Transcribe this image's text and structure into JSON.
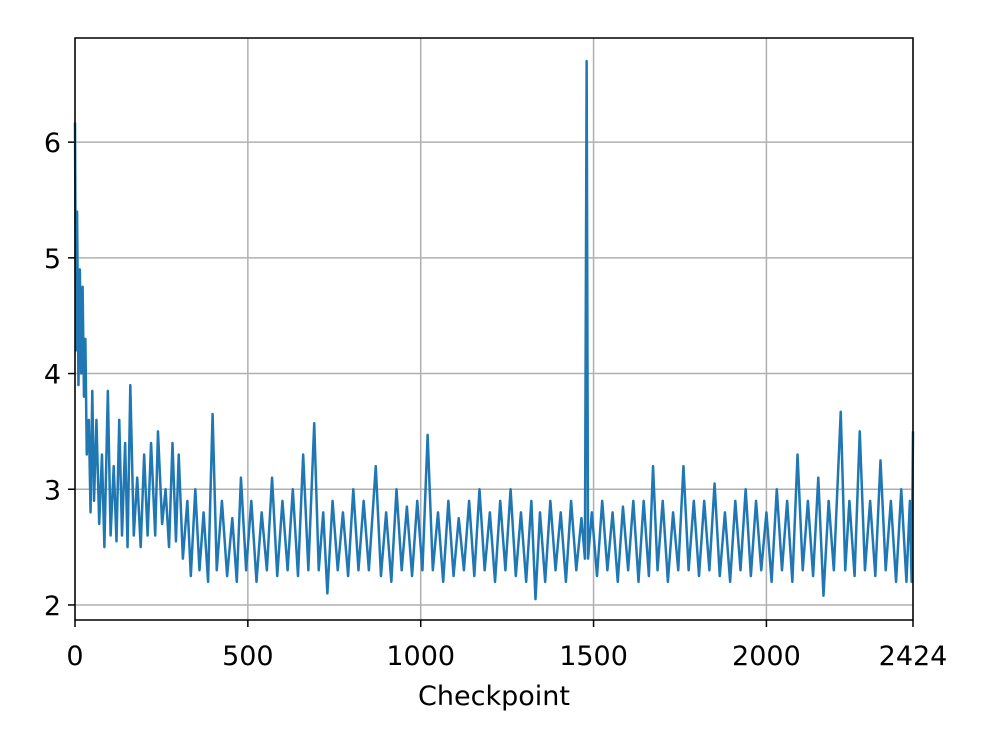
{
  "chart_data": {
    "type": "line",
    "x_label": "Checkpoint",
    "xlim": [
      0,
      2424
    ],
    "xticks": [
      0,
      500,
      1000,
      1500,
      2000,
      2424
    ],
    "ylim": [
      1.87,
      6.9
    ],
    "yticks": [
      2,
      3,
      4,
      5,
      6
    ],
    "grid": true,
    "series": [
      {
        "color": "#1f77b4",
        "x": [
          0,
          3,
          6,
          10,
          14,
          18,
          22,
          26,
          30,
          34,
          40,
          45,
          50,
          55,
          62,
          70,
          78,
          85,
          95,
          103,
          112,
          120,
          128,
          136,
          145,
          152,
          160,
          170,
          180,
          190,
          200,
          210,
          220,
          232,
          240,
          252,
          262,
          272,
          282,
          292,
          300,
          312,
          325,
          335,
          348,
          360,
          372,
          385,
          398,
          410,
          425,
          440,
          455,
          468,
          480,
          495,
          510,
          525,
          540,
          555,
          570,
          585,
          600,
          615,
          630,
          645,
          660,
          675,
          692,
          705,
          718,
          730,
          745,
          760,
          775,
          790,
          805,
          820,
          835,
          850,
          870,
          885,
          900,
          915,
          930,
          945,
          960,
          975,
          990,
          1005,
          1020,
          1035,
          1050,
          1065,
          1080,
          1095,
          1110,
          1125,
          1140,
          1155,
          1170,
          1185,
          1200,
          1215,
          1230,
          1245,
          1260,
          1275,
          1290,
          1305,
          1320,
          1332,
          1345,
          1360,
          1375,
          1390,
          1405,
          1420,
          1435,
          1450,
          1465,
          1475,
          1480,
          1484,
          1495,
          1510,
          1525,
          1540,
          1555,
          1570,
          1585,
          1600,
          1615,
          1630,
          1645,
          1660,
          1672,
          1685,
          1700,
          1715,
          1730,
          1745,
          1760,
          1775,
          1790,
          1805,
          1820,
          1835,
          1850,
          1865,
          1880,
          1895,
          1910,
          1925,
          1940,
          1955,
          1970,
          1985,
          2000,
          2015,
          2030,
          2045,
          2060,
          2075,
          2090,
          2105,
          2120,
          2135,
          2150,
          2165,
          2180,
          2195,
          2215,
          2228,
          2240,
          2255,
          2270,
          2285,
          2300,
          2315,
          2330,
          2345,
          2360,
          2375,
          2390,
          2405,
          2415,
          2420,
          2424
        ],
        "values": [
          6.17,
          4.2,
          5.4,
          3.9,
          4.9,
          4.0,
          4.75,
          3.8,
          4.3,
          3.3,
          3.6,
          2.8,
          3.85,
          2.9,
          3.6,
          2.7,
          3.3,
          2.5,
          3.85,
          2.6,
          3.2,
          2.55,
          3.6,
          2.6,
          3.4,
          2.5,
          3.9,
          2.6,
          3.1,
          2.5,
          3.3,
          2.6,
          3.4,
          2.6,
          3.5,
          2.7,
          3.0,
          2.5,
          3.4,
          2.55,
          3.3,
          2.4,
          2.9,
          2.25,
          3.0,
          2.3,
          2.8,
          2.2,
          3.65,
          2.3,
          2.9,
          2.25,
          2.75,
          2.2,
          3.1,
          2.3,
          2.9,
          2.2,
          2.8,
          2.3,
          3.1,
          2.25,
          2.9,
          2.3,
          3.0,
          2.25,
          3.3,
          2.3,
          3.57,
          2.3,
          2.8,
          2.1,
          2.9,
          2.3,
          2.8,
          2.25,
          3.0,
          2.3,
          2.9,
          2.3,
          3.2,
          2.25,
          2.8,
          2.2,
          3.0,
          2.3,
          2.85,
          2.25,
          2.9,
          2.3,
          3.47,
          2.3,
          2.8,
          2.2,
          2.9,
          2.25,
          2.75,
          2.3,
          2.9,
          2.25,
          3.0,
          2.3,
          2.8,
          2.2,
          2.9,
          2.3,
          3.0,
          2.25,
          2.8,
          2.2,
          2.9,
          2.05,
          2.8,
          2.2,
          2.9,
          2.3,
          2.8,
          2.2,
          2.9,
          2.3,
          2.75,
          2.4,
          6.7,
          2.4,
          2.8,
          2.25,
          2.9,
          2.3,
          2.8,
          2.2,
          2.85,
          2.3,
          2.9,
          2.2,
          2.9,
          2.25,
          3.2,
          2.3,
          2.9,
          2.2,
          2.8,
          2.3,
          3.2,
          2.3,
          2.9,
          2.25,
          2.9,
          2.3,
          3.05,
          2.25,
          2.8,
          2.2,
          2.9,
          2.3,
          3.0,
          2.25,
          2.9,
          2.3,
          2.8,
          2.2,
          3.0,
          2.3,
          2.9,
          2.2,
          3.3,
          2.3,
          2.9,
          2.25,
          3.1,
          2.08,
          2.9,
          2.3,
          3.67,
          2.3,
          2.9,
          2.25,
          3.5,
          2.3,
          2.9,
          2.25,
          3.25,
          2.3,
          2.9,
          2.2,
          3.0,
          2.2,
          2.9,
          2.2,
          3.5
        ]
      }
    ]
  }
}
